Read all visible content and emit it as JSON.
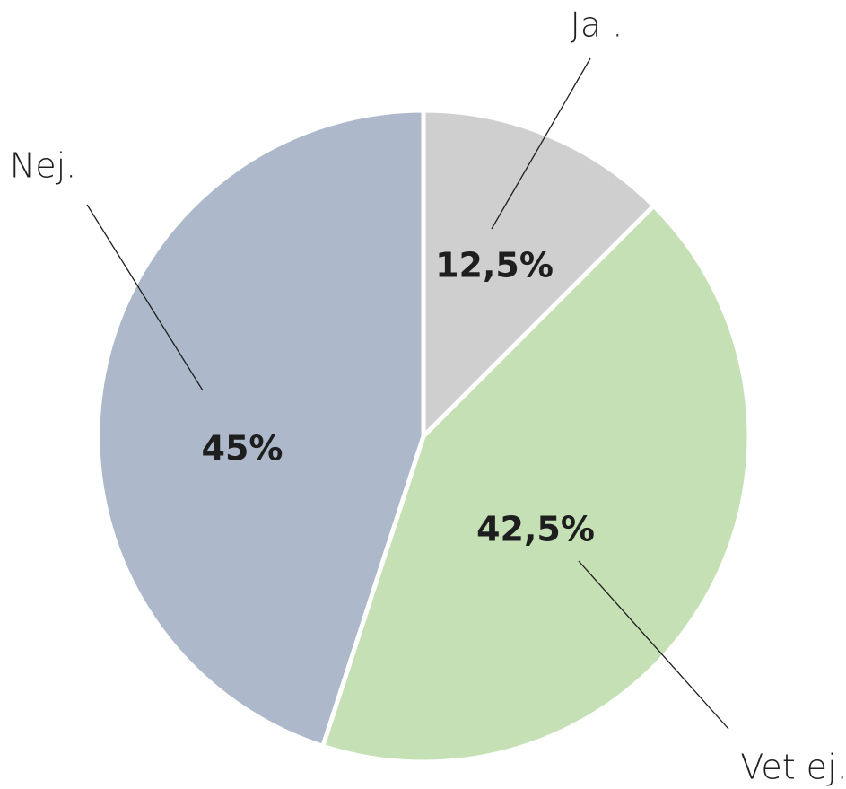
{
  "chart_data": {
    "type": "pie",
    "categories": [
      "Ja .",
      "Vet ej.",
      "Nej."
    ],
    "values": [
      12.5,
      42.5,
      45
    ],
    "value_labels": [
      "12,5%",
      "42,5%",
      "45%"
    ],
    "colors": [
      "#d0cfcf",
      "#c5e0b4",
      "#adb9ca"
    ]
  }
}
